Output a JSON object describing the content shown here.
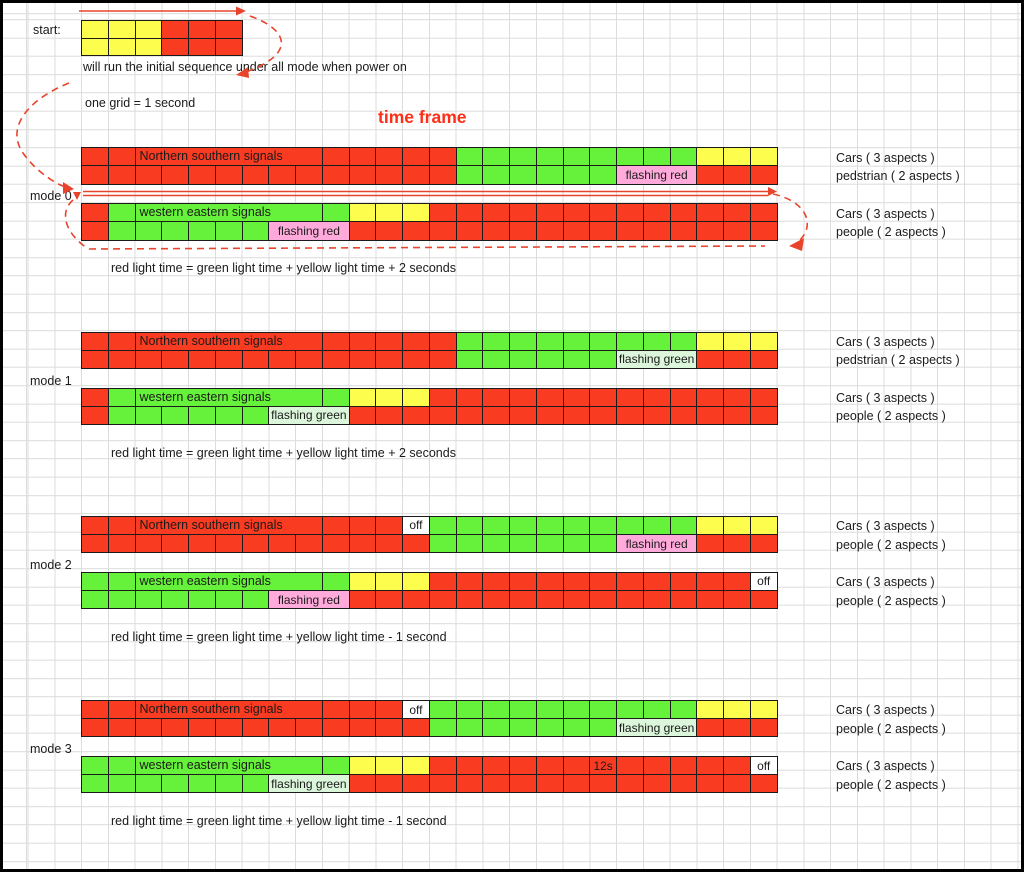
{
  "page": {
    "start_label": "start:",
    "start_caption": "will run the initial sequence under all mode when power on",
    "grid_note": "one grid = 1 second",
    "time_frame_title": "time frame",
    "grid_unit_seconds": 1,
    "timeline_cells": 26
  },
  "colors": {
    "red": "#f93b22",
    "green": "#66f23a",
    "yellow": "#fdfd4e",
    "pink": "#ffaadb",
    "palegreen": "#dbf6da",
    "off": "#ffffff",
    "border": "#1b1b1b",
    "annot": "#e8442b",
    "titlered": "#fe2d16",
    "gridline": "#dcdcdc"
  },
  "start_bar": {
    "rows": 2,
    "segments": [
      {
        "c": "yellow",
        "n": 3
      },
      {
        "c": "red",
        "n": 3
      }
    ]
  },
  "modes": [
    {
      "name": "mode 0",
      "note": "red light time = green light time + yellow light time + 2 seconds",
      "ns": {
        "title": "Northern southern signals",
        "aspect_labels": [
          "Cars ( 3 aspects )",
          "pedstrian ( 2 aspects )"
        ],
        "top": [
          {
            "c": "red",
            "n": 14
          },
          {
            "c": "green",
            "n": 9
          },
          {
            "c": "yellow",
            "n": 3
          }
        ],
        "bottom": [
          {
            "c": "red",
            "n": 14
          },
          {
            "c": "green",
            "n": 6
          },
          {
            "c": "pink",
            "n": 3,
            "t": "flashing red"
          },
          {
            "c": "red",
            "n": 3
          }
        ]
      },
      "we": {
        "title": "western eastern signals",
        "aspect_labels": [
          "Cars ( 3 aspects )",
          "people ( 2 aspects )"
        ],
        "top": [
          {
            "c": "red",
            "n": 1
          },
          {
            "c": "green",
            "n": 9
          },
          {
            "c": "yellow",
            "n": 3
          },
          {
            "c": "red",
            "n": 13
          }
        ],
        "bottom": [
          {
            "c": "red",
            "n": 1
          },
          {
            "c": "green",
            "n": 6
          },
          {
            "c": "pink",
            "n": 3,
            "t": "flashing red"
          },
          {
            "c": "red",
            "n": 16
          }
        ]
      }
    },
    {
      "name": "mode 1",
      "note": "red light time = green light time + yellow light time + 2 seconds",
      "ns": {
        "title": "Northern southern signals",
        "aspect_labels": [
          "Cars ( 3 aspects )",
          "pedstrian ( 2 aspects )"
        ],
        "top": [
          {
            "c": "red",
            "n": 14
          },
          {
            "c": "green",
            "n": 9
          },
          {
            "c": "yellow",
            "n": 3
          }
        ],
        "bottom": [
          {
            "c": "red",
            "n": 14
          },
          {
            "c": "green",
            "n": 6
          },
          {
            "c": "palegreen",
            "n": 3,
            "t": "flashing green"
          },
          {
            "c": "red",
            "n": 3
          }
        ]
      },
      "we": {
        "title": "western eastern signals",
        "aspect_labels": [
          "Cars ( 3 aspects )",
          "people ( 2 aspects )"
        ],
        "top": [
          {
            "c": "red",
            "n": 1
          },
          {
            "c": "green",
            "n": 9
          },
          {
            "c": "yellow",
            "n": 3
          },
          {
            "c": "red",
            "n": 13
          }
        ],
        "bottom": [
          {
            "c": "red",
            "n": 1
          },
          {
            "c": "green",
            "n": 6
          },
          {
            "c": "palegreen",
            "n": 3,
            "t": "flashing green"
          },
          {
            "c": "red",
            "n": 16
          }
        ]
      }
    },
    {
      "name": "mode 2",
      "note": "red light time = green light time + yellow light time - 1 second",
      "ns": {
        "title": "Northern southern signals",
        "aspect_labels": [
          "Cars ( 3 aspects )",
          "people ( 2 aspects )"
        ],
        "top": [
          {
            "c": "red",
            "n": 12
          },
          {
            "c": "off",
            "n": 1,
            "t": "off"
          },
          {
            "c": "green",
            "n": 10
          },
          {
            "c": "yellow",
            "n": 3
          }
        ],
        "bottom": [
          {
            "c": "red",
            "n": 13
          },
          {
            "c": "green",
            "n": 7
          },
          {
            "c": "pink",
            "n": 3,
            "t": "flashing red"
          },
          {
            "c": "red",
            "n": 3
          }
        ]
      },
      "we": {
        "title": "western eastern signals",
        "aspect_labels": [
          "Cars ( 3 aspects )",
          "people ( 2 aspects )"
        ],
        "top": [
          {
            "c": "green",
            "n": 10
          },
          {
            "c": "yellow",
            "n": 3
          },
          {
            "c": "red",
            "n": 12
          },
          {
            "c": "off",
            "n": 1,
            "t": "off"
          }
        ],
        "bottom": [
          {
            "c": "green",
            "n": 7
          },
          {
            "c": "pink",
            "n": 3,
            "t": "flashing red"
          },
          {
            "c": "red",
            "n": 16
          }
        ]
      }
    },
    {
      "name": "mode 3",
      "note": "red light time = green light time + yellow light time - 1 second",
      "ns": {
        "title": "Northern southern signals",
        "aspect_labels": [
          "Cars ( 3 aspects )",
          "people ( 2 aspects )"
        ],
        "top": [
          {
            "c": "red",
            "n": 12
          },
          {
            "c": "off",
            "n": 1,
            "t": "off"
          },
          {
            "c": "green",
            "n": 10
          },
          {
            "c": "yellow",
            "n": 3
          }
        ],
        "bottom": [
          {
            "c": "red",
            "n": 13
          },
          {
            "c": "green",
            "n": 7
          },
          {
            "c": "palegreen",
            "n": 3,
            "t": "flashing green"
          },
          {
            "c": "red",
            "n": 3
          }
        ]
      },
      "we": {
        "title": "western eastern signals",
        "aspect_labels": [
          "Cars ( 3 aspects )",
          "people ( 2 aspects )"
        ],
        "top": [
          {
            "c": "green",
            "n": 10
          },
          {
            "c": "yellow",
            "n": 3
          },
          {
            "c": "red",
            "n": 6
          },
          {
            "c": "red",
            "n": 1,
            "t": "12s"
          },
          {
            "c": "red",
            "n": 5
          },
          {
            "c": "off",
            "n": 1,
            "t": "off"
          }
        ],
        "bottom": [
          {
            "c": "green",
            "n": 7
          },
          {
            "c": "palegreen",
            "n": 3,
            "t": "flashing green"
          },
          {
            "c": "red",
            "n": 16
          }
        ]
      }
    }
  ]
}
